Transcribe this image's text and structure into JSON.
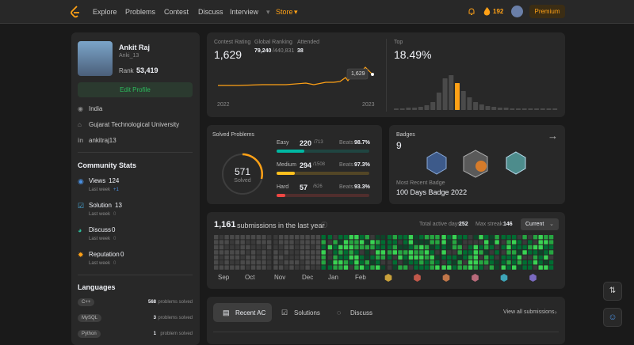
{
  "nav": {
    "items": [
      "Explore",
      "Problems",
      "Contest",
      "Discuss",
      "Interview",
      "Store"
    ],
    "streak": "192",
    "premium": "Premium"
  },
  "profile": {
    "name": "Ankit Raj",
    "username": "Anki_13",
    "rank_label": "Rank",
    "rank": "53,419",
    "edit": "Edit Profile",
    "location": "India",
    "school": "Gujarat Technological University",
    "linkedin": "ankitraj13"
  },
  "community": {
    "title": "Community Stats",
    "stats": [
      {
        "label": "Views",
        "value": "124",
        "week_label": "Last week",
        "week": "+1"
      },
      {
        "label": "Solution",
        "value": "13",
        "week_label": "Last week",
        "week": "0"
      },
      {
        "label": "Discuss",
        "value": "0",
        "week_label": "Last week",
        "week": "0"
      },
      {
        "label": "Reputation",
        "value": "0",
        "week_label": "Last week",
        "week": "0"
      }
    ]
  },
  "languages": {
    "title": "Languages",
    "items": [
      {
        "name": "C++",
        "count": "568",
        "suffix": "problems solved"
      },
      {
        "name": "MySQL",
        "count": "3",
        "suffix": "problems solved"
      },
      {
        "name": "Python",
        "count": "1",
        "suffix": "problem solved"
      }
    ]
  },
  "contest": {
    "rating_label": "Contest Rating",
    "rating": "1,629",
    "global_label": "Global Ranking",
    "global": "79,240",
    "global_total": "/440,831",
    "attended_label": "Attended",
    "attended": "38",
    "start": "2022",
    "end": "2023",
    "tooltip": "1,629",
    "top_label": "Top",
    "top": "18.49%"
  },
  "solved": {
    "title": "Solved Problems",
    "total": "571",
    "total_label": "Solved",
    "levels": [
      {
        "name": "Easy",
        "solved": "220",
        "total": "/713",
        "beats_label": "Beats",
        "beats": "98.7%"
      },
      {
        "name": "Medium",
        "solved": "294",
        "total": "/1508",
        "beats_label": "Beats",
        "beats": "97.3%"
      },
      {
        "name": "Hard",
        "solved": "57",
        "total": "/626",
        "beats_label": "Beats",
        "beats": "93.3%"
      }
    ]
  },
  "badges": {
    "title": "Badges",
    "count": "9",
    "recent_label": "Most Recent Badge",
    "recent": "100 Days Badge 2022"
  },
  "submissions": {
    "count": "1,161",
    "text": "submissions in the last year",
    "active_label": "Total active days:",
    "active": "252",
    "streak_label": "Max streak:",
    "streak": "146",
    "select": "Current",
    "months": [
      "Sep",
      "Oct",
      "Nov",
      "Dec",
      "Jan",
      "Feb"
    ]
  },
  "tabs": {
    "items": [
      "Recent AC",
      "Solutions",
      "Discuss"
    ],
    "view_all": "View all submissions"
  }
}
